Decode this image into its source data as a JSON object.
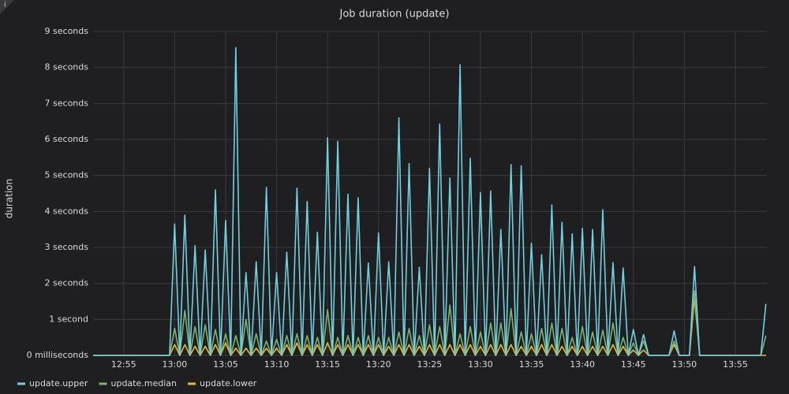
{
  "chart_data": {
    "type": "line",
    "title": "Job duration (update)",
    "y_label": "duration",
    "x": [
      772,
      779.5,
      780,
      780.5,
      781,
      781.5,
      782,
      782.5,
      783,
      783.5,
      784,
      784.5,
      785,
      785.5,
      786,
      786.5,
      787,
      787.5,
      788,
      788.5,
      789,
      789.5,
      790,
      790.5,
      791,
      791.5,
      792,
      792.5,
      793,
      793.5,
      794,
      794.5,
      795,
      795.5,
      796,
      796.5,
      797,
      797.5,
      798,
      798.5,
      799,
      799.5,
      800,
      800.5,
      801,
      801.5,
      802,
      802.5,
      803,
      803.5,
      804,
      804.5,
      805,
      805.5,
      806,
      806.5,
      807,
      807.5,
      808,
      808.5,
      809,
      809.5,
      810,
      810.5,
      811,
      811.5,
      812,
      812.5,
      813,
      813.5,
      814,
      814.5,
      815,
      815.5,
      816,
      816.5,
      817,
      817.5,
      818,
      818.5,
      819,
      819.5,
      820,
      820.5,
      821,
      821.5,
      822,
      822.5,
      823,
      823.5,
      824,
      824.5,
      825,
      825.5,
      826,
      826.5,
      828.5,
      829,
      829.5,
      830.5,
      831,
      831.5,
      837.5,
      838
    ],
    "series": [
      {
        "name": "update.upper",
        "color": "#6ed0e0",
        "values": [
          0,
          0,
          3.65,
          0,
          3.9,
          0,
          3.05,
          0,
          2.93,
          0,
          4.6,
          0,
          3.75,
          0,
          8.55,
          0,
          2.3,
          0,
          2.6,
          0,
          4.67,
          0,
          2.3,
          0,
          2.87,
          0,
          4.65,
          0,
          4.28,
          0,
          3.42,
          0,
          6.05,
          0,
          5.95,
          0,
          4.48,
          0,
          4.38,
          0,
          2.57,
          0,
          3.4,
          0,
          2.6,
          0,
          6.6,
          0,
          5.33,
          0,
          2.45,
          0,
          5.2,
          0,
          6.43,
          0,
          4.93,
          0,
          8.08,
          0,
          5.48,
          0,
          4.53,
          0,
          4.57,
          0,
          3.5,
          0,
          5.3,
          0,
          5.27,
          0,
          3.12,
          0,
          2.8,
          0,
          4.18,
          0,
          3.7,
          0,
          3.38,
          0,
          3.53,
          0,
          3.5,
          0,
          4.05,
          0,
          2.58,
          0,
          2.43,
          0,
          0.72,
          0,
          0.58,
          0,
          0,
          0.68,
          0,
          0,
          2.47,
          0,
          0,
          1.43
        ]
      },
      {
        "name": "update.median",
        "color": "#7eb26d",
        "values": [
          0,
          0,
          0.75,
          0,
          1.25,
          0,
          0.8,
          0,
          0.85,
          0,
          0.72,
          0,
          0.6,
          0,
          0.55,
          0,
          1.0,
          0,
          0.6,
          0,
          0.4,
          0,
          0.45,
          0,
          0.55,
          0,
          0.6,
          0,
          0.55,
          0,
          0.5,
          0,
          1.27,
          0,
          0.5,
          0,
          0.55,
          0,
          0.5,
          0,
          0.55,
          0,
          0.5,
          0,
          0.5,
          0,
          0.65,
          0,
          0.75,
          0,
          0.55,
          0,
          0.85,
          0,
          0.8,
          0,
          1.4,
          0,
          0.6,
          0,
          0.8,
          0,
          0.65,
          0,
          0.9,
          0,
          0.9,
          0,
          1.3,
          0,
          0.65,
          0,
          0.6,
          0,
          0.75,
          0,
          0.9,
          0,
          0.75,
          0,
          0.5,
          0,
          0.8,
          0,
          0.65,
          0,
          0.7,
          0,
          0.9,
          0,
          0.5,
          0,
          0.35,
          0,
          0.4,
          0,
          0,
          0.4,
          0,
          0,
          1.8,
          0,
          0,
          0.55
        ]
      },
      {
        "name": "update.lower",
        "color": "#eab839",
        "values": [
          0,
          0,
          0.3,
          0,
          0.3,
          0,
          0.25,
          0,
          0.25,
          0,
          0.3,
          0,
          0.35,
          0,
          0.2,
          0,
          0.2,
          0,
          0.2,
          0,
          0.2,
          0,
          0.2,
          0,
          0.3,
          0,
          0.35,
          0,
          0.3,
          0,
          0.3,
          0,
          0.35,
          0,
          0.3,
          0,
          0.3,
          0,
          0.3,
          0,
          0.3,
          0,
          0.3,
          0,
          0.25,
          0,
          0.3,
          0,
          0.3,
          0,
          0.25,
          0,
          0.3,
          0,
          0.3,
          0,
          0.3,
          0,
          0.3,
          0,
          0.3,
          0,
          0.25,
          0,
          0.3,
          0,
          0.3,
          0,
          0.3,
          0,
          0.25,
          0,
          0.25,
          0,
          0.3,
          0,
          0.3,
          0,
          0.25,
          0,
          0.25,
          0,
          0.25,
          0,
          0.25,
          0,
          0.25,
          0,
          0.3,
          0,
          0.25,
          0,
          0.15,
          0,
          0.15,
          0,
          0,
          0.3,
          0,
          0,
          1.6,
          0,
          0,
          0
        ]
      }
    ],
    "xlim": [
      772,
      838.1
    ],
    "xticks": [
      {
        "value": 775,
        "label": "12:55"
      },
      {
        "value": 780,
        "label": "13:00"
      },
      {
        "value": 785,
        "label": "13:05"
      },
      {
        "value": 790,
        "label": "13:10"
      },
      {
        "value": 795,
        "label": "13:15"
      },
      {
        "value": 800,
        "label": "13:20"
      },
      {
        "value": 805,
        "label": "13:25"
      },
      {
        "value": 810,
        "label": "13:30"
      },
      {
        "value": 815,
        "label": "13:35"
      },
      {
        "value": 820,
        "label": "13:40"
      },
      {
        "value": 825,
        "label": "13:45"
      },
      {
        "value": 830,
        "label": "13:50"
      },
      {
        "value": 835,
        "label": "13:55"
      }
    ],
    "ylim": [
      0,
      9
    ],
    "yticks": [
      {
        "value": 0,
        "label": "0 milliseconds"
      },
      {
        "value": 1,
        "label": "1 second"
      },
      {
        "value": 2,
        "label": "2 seconds"
      },
      {
        "value": 3,
        "label": "3 seconds"
      },
      {
        "value": 4,
        "label": "4 seconds"
      },
      {
        "value": 5,
        "label": "5 seconds"
      },
      {
        "value": 6,
        "label": "6 seconds"
      },
      {
        "value": 7,
        "label": "7 seconds"
      },
      {
        "value": 8,
        "label": "8 seconds"
      },
      {
        "value": 9,
        "label": "9 seconds"
      }
    ],
    "grid": true,
    "legend": "bottom"
  }
}
